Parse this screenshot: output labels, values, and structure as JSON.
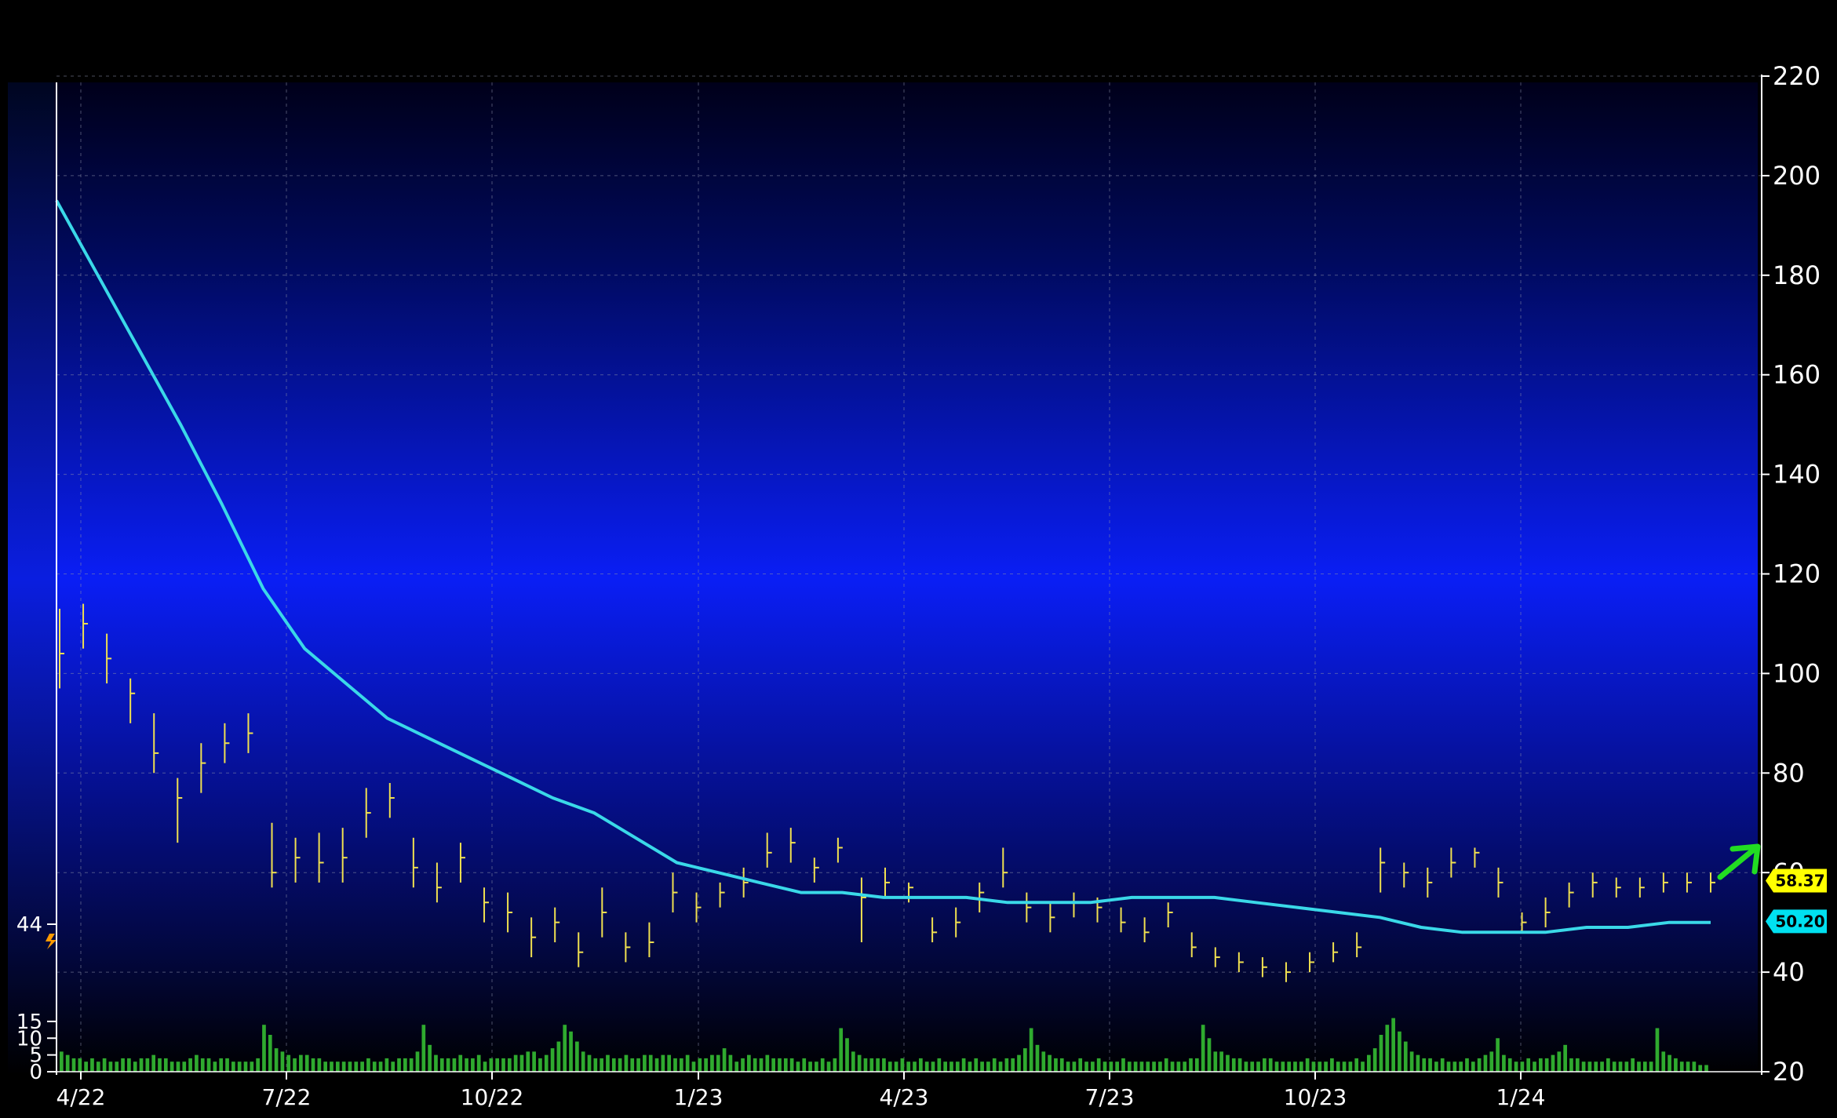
{
  "chart_data": {
    "type": "line",
    "subtype": "ohlc-bar-with-moving-average-and-volume",
    "title": "",
    "xlabel": "",
    "ylabel": "",
    "ylim": [
      20,
      220
    ],
    "y_ticks": [
      "220",
      "200",
      "180",
      "160",
      "140",
      "120",
      "100",
      "80",
      "60",
      "40",
      "20"
    ],
    "x_ticks": [
      "4/22",
      "7/22",
      "10/22",
      "1/23",
      "4/23",
      "7/23",
      "10/23",
      "1/24"
    ],
    "grid": true,
    "legend": "none",
    "price_series": {
      "name": "",
      "color": "#f0e050",
      "x": [
        "4/22",
        "4/22",
        "5/22",
        "5/22",
        "5/22",
        "6/22",
        "6/22",
        "6/22",
        "6/22",
        "7/22",
        "7/22",
        "7/22",
        "8/22",
        "8/22",
        "8/22",
        "9/22",
        "9/22",
        "10/22",
        "10/22",
        "10/22",
        "11/22",
        "11/22",
        "11/22",
        "12/22",
        "12/22",
        "12/22",
        "1/23",
        "1/23",
        "1/23",
        "2/23",
        "2/23",
        "2/23",
        "3/23",
        "3/23",
        "3/23",
        "4/23",
        "4/23",
        "5/23",
        "5/23",
        "5/23",
        "6/23",
        "6/23",
        "6/23",
        "7/23",
        "7/23",
        "7/23",
        "8/23",
        "8/23",
        "8/23",
        "9/23",
        "9/23",
        "9/23",
        "10/23",
        "10/23",
        "10/23",
        "11/23",
        "11/23",
        "11/23",
        "12/23",
        "12/23",
        "12/23",
        "1/24",
        "1/24",
        "1/24",
        "2/24",
        "2/24",
        "2/24",
        "3/24",
        "3/24",
        "3/24",
        "4/24"
      ],
      "close": [
        104,
        110,
        103,
        96,
        84,
        75,
        82,
        86,
        88,
        60,
        63,
        62,
        63,
        72,
        75,
        61,
        57,
        63,
        54,
        52,
        47,
        50,
        44,
        52,
        45,
        46,
        56,
        53,
        56,
        58,
        64,
        66,
        61,
        65,
        55,
        58,
        57,
        48,
        50,
        56,
        60,
        53,
        51,
        54,
        53,
        50,
        48,
        52,
        45,
        43,
        42,
        41,
        40,
        42,
        44,
        45,
        62,
        60,
        58,
        62,
        64,
        58,
        50,
        52,
        56,
        58,
        57,
        57,
        58,
        58,
        58
      ],
      "high": [
        113,
        114,
        108,
        99,
        92,
        79,
        86,
        90,
        92,
        70,
        67,
        68,
        69,
        77,
        78,
        67,
        62,
        66,
        57,
        56,
        51,
        53,
        48,
        57,
        48,
        50,
        60,
        56,
        58,
        61,
        68,
        69,
        63,
        67,
        59,
        61,
        58,
        51,
        53,
        58,
        65,
        56,
        54,
        56,
        55,
        53,
        51,
        54,
        48,
        45,
        44,
        43,
        42,
        44,
        46,
        48,
        65,
        62,
        61,
        65,
        65,
        61,
        52,
        55,
        58,
        60,
        59,
        59,
        60,
        60,
        60
      ],
      "low": [
        97,
        105,
        98,
        90,
        80,
        66,
        76,
        82,
        84,
        57,
        58,
        58,
        58,
        67,
        71,
        57,
        54,
        58,
        50,
        48,
        43,
        46,
        41,
        47,
        42,
        43,
        52,
        50,
        53,
        55,
        61,
        62,
        58,
        62,
        46,
        55,
        54,
        46,
        47,
        52,
        57,
        50,
        48,
        51,
        50,
        48,
        46,
        49,
        43,
        41,
        40,
        39,
        38,
        40,
        42,
        43,
        56,
        57,
        55,
        59,
        61,
        55,
        48,
        49,
        53,
        55,
        55,
        55,
        56,
        56,
        56
      ]
    },
    "moving_average": {
      "name": "",
      "color": "#3ad8e8",
      "values": [
        195,
        180,
        165,
        150,
        134,
        117,
        105,
        98,
        91,
        87,
        83,
        79,
        75,
        72,
        67,
        62,
        60,
        58,
        56,
        56,
        55,
        55,
        55,
        54,
        54,
        54,
        55,
        55,
        55,
        54,
        53,
        52,
        51,
        49,
        48,
        48,
        48,
        49,
        49,
        50,
        50
      ]
    },
    "last_price_label": {
      "text": "58.37",
      "color": "#ffff00",
      "value": 58.37
    },
    "ma_price_label": {
      "text": "50.20",
      "color": "#00e0f0",
      "value": 50.2
    },
    "up_arrow_color": "#22dd22",
    "volume": {
      "ticks": [
        "44",
        "15",
        "10",
        "5",
        "0"
      ],
      "max": 44,
      "color": "#2faa2f",
      "values": [
        6,
        5,
        4,
        4,
        3,
        4,
        3,
        4,
        3,
        3,
        4,
        4,
        3,
        4,
        4,
        5,
        4,
        4,
        3,
        3,
        3,
        4,
        5,
        4,
        4,
        3,
        4,
        4,
        3,
        3,
        3,
        3,
        4,
        14,
        11,
        7,
        6,
        5,
        4,
        5,
        5,
        4,
        4,
        3,
        3,
        3,
        3,
        3,
        3,
        3,
        4,
        3,
        3,
        4,
        3,
        4,
        4,
        4,
        6,
        14,
        8,
        5,
        4,
        4,
        4,
        5,
        4,
        4,
        5,
        3,
        4,
        4,
        4,
        4,
        5,
        5,
        6,
        6,
        4,
        5,
        7,
        9,
        14,
        12,
        9,
        6,
        5,
        4,
        4,
        5,
        4,
        4,
        5,
        4,
        4,
        5,
        5,
        4,
        5,
        5,
        4,
        4,
        5,
        3,
        4,
        4,
        5,
        5,
        7,
        5,
        3,
        4,
        5,
        4,
        4,
        5,
        4,
        4,
        4,
        4,
        3,
        4,
        3,
        3,
        4,
        3,
        4,
        13,
        10,
        6,
        5,
        4,
        4,
        4,
        4,
        3,
        3,
        4,
        3,
        3,
        4,
        3,
        3,
        4,
        3,
        3,
        3,
        4,
        3,
        4,
        3,
        3,
        4,
        3,
        4,
        4,
        5,
        7,
        13,
        8,
        6,
        5,
        4,
        4,
        3,
        3,
        4,
        3,
        3,
        4,
        3,
        3,
        3,
        4,
        3,
        3,
        3,
        3,
        3,
        3,
        4,
        3,
        3,
        3,
        4,
        4,
        14,
        10,
        6,
        6,
        5,
        4,
        4,
        3,
        3,
        3,
        4,
        4,
        3,
        3,
        3,
        3,
        3,
        4,
        3,
        3,
        3,
        4,
        3,
        3,
        3,
        4,
        3,
        5,
        7,
        11,
        14,
        16,
        12,
        9,
        6,
        5,
        4,
        4,
        3,
        4,
        3,
        3,
        3,
        4,
        3,
        4,
        5,
        6,
        10,
        5,
        4,
        3,
        3,
        4,
        3,
        4,
        4,
        5,
        6,
        8,
        4,
        4,
        3,
        3,
        3,
        3,
        4,
        3,
        3,
        3,
        4,
        3,
        3,
        3,
        13,
        6,
        5,
        4,
        3,
        3,
        3,
        2,
        2
      ]
    }
  }
}
